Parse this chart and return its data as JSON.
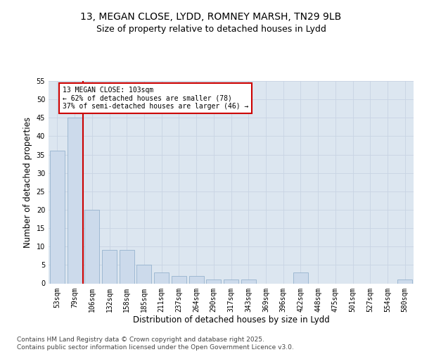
{
  "title_line1": "13, MEGAN CLOSE, LYDD, ROMNEY MARSH, TN29 9LB",
  "title_line2": "Size of property relative to detached houses in Lydd",
  "xlabel": "Distribution of detached houses by size in Lydd",
  "ylabel": "Number of detached properties",
  "categories": [
    "53sqm",
    "79sqm",
    "106sqm",
    "132sqm",
    "158sqm",
    "185sqm",
    "211sqm",
    "237sqm",
    "264sqm",
    "290sqm",
    "317sqm",
    "343sqm",
    "369sqm",
    "396sqm",
    "422sqm",
    "448sqm",
    "475sqm",
    "501sqm",
    "527sqm",
    "554sqm",
    "580sqm"
  ],
  "values": [
    36,
    45,
    20,
    9,
    9,
    5,
    3,
    2,
    2,
    1,
    1,
    1,
    0,
    0,
    3,
    0,
    0,
    0,
    0,
    0,
    1
  ],
  "bar_color": "#ccdaeb",
  "bar_edge_color": "#8aaac8",
  "vline_color": "#cc0000",
  "vline_position": 1.5,
  "annotation_text": "13 MEGAN CLOSE: 103sqm\n← 62% of detached houses are smaller (78)\n37% of semi-detached houses are larger (46) →",
  "annotation_box_color": "#ffffff",
  "annotation_box_edge": "#cc0000",
  "annotation_fontsize": 7.0,
  "ylim": [
    0,
    55
  ],
  "yticks": [
    0,
    5,
    10,
    15,
    20,
    25,
    30,
    35,
    40,
    45,
    50,
    55
  ],
  "grid_color": "#c8d4e4",
  "background_color": "#dce6f0",
  "footer_text": "Contains HM Land Registry data © Crown copyright and database right 2025.\nContains public sector information licensed under the Open Government Licence v3.0.",
  "title_fontsize": 10,
  "subtitle_fontsize": 9,
  "axis_label_fontsize": 8.5,
  "tick_fontsize": 7,
  "footer_fontsize": 6.5
}
